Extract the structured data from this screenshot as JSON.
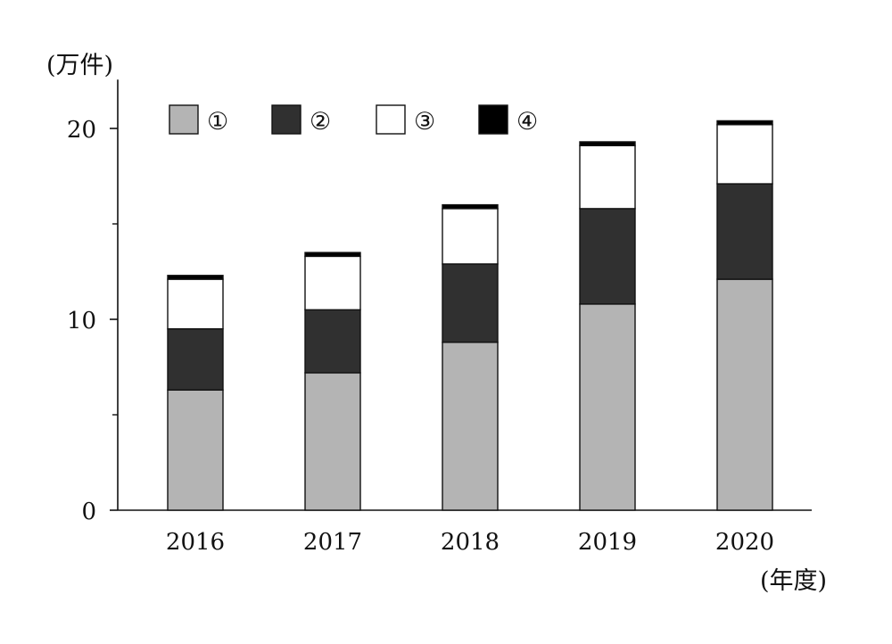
{
  "chart_data": {
    "type": "bar",
    "stacked": true,
    "y_unit_label": "(万件)",
    "x_unit_label": "(年度)",
    "categories": [
      "2016",
      "2017",
      "2018",
      "2019",
      "2020"
    ],
    "ylim": [
      0,
      22
    ],
    "yticks": [
      0,
      10,
      20
    ],
    "y_minor_ticks": [
      5,
      15
    ],
    "grid": false,
    "legend_position": "top-left",
    "series": [
      {
        "name": "①",
        "color": "#b4b4b4",
        "values": [
          6.3,
          7.2,
          8.8,
          10.8,
          12.1
        ]
      },
      {
        "name": "②",
        "color": "#303030",
        "values": [
          3.2,
          3.3,
          4.1,
          5.0,
          5.0
        ]
      },
      {
        "name": "③",
        "color": "#ffffff",
        "values": [
          2.6,
          2.8,
          2.9,
          3.3,
          3.1
        ]
      },
      {
        "name": "④",
        "color": "#000000",
        "values": [
          0.2,
          0.2,
          0.2,
          0.2,
          0.2
        ]
      }
    ]
  }
}
